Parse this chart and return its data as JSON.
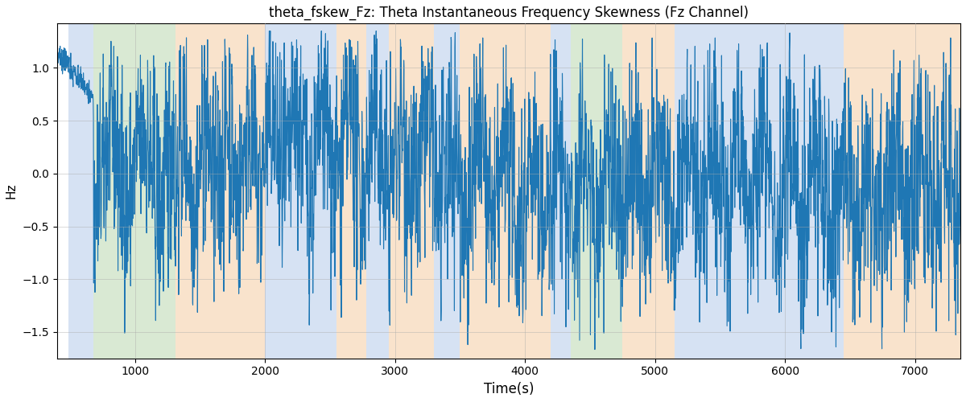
{
  "title": "theta_fskew_Fz: Theta Instantaneous Frequency Skewness (Fz Channel)",
  "xlabel": "Time(s)",
  "ylabel": "Hz",
  "xlim": [
    400,
    7350
  ],
  "ylim": [
    -1.75,
    1.42
  ],
  "line_color": "#1f77b4",
  "line_width": 0.8,
  "bg_regions": [
    {
      "xmin": 490,
      "xmax": 680,
      "color": "#aec6e8",
      "alpha": 0.5
    },
    {
      "xmin": 680,
      "xmax": 1310,
      "color": "#b5d4a8",
      "alpha": 0.5
    },
    {
      "xmin": 1310,
      "xmax": 2000,
      "color": "#f5c99a",
      "alpha": 0.5
    },
    {
      "xmin": 2000,
      "xmax": 2550,
      "color": "#aec6e8",
      "alpha": 0.5
    },
    {
      "xmin": 2550,
      "xmax": 2780,
      "color": "#f5c99a",
      "alpha": 0.5
    },
    {
      "xmin": 2780,
      "xmax": 2950,
      "color": "#aec6e8",
      "alpha": 0.5
    },
    {
      "xmin": 2950,
      "xmax": 3300,
      "color": "#f5c99a",
      "alpha": 0.5
    },
    {
      "xmin": 3300,
      "xmax": 3500,
      "color": "#aec6e8",
      "alpha": 0.5
    },
    {
      "xmin": 3500,
      "xmax": 4200,
      "color": "#f5c99a",
      "alpha": 0.5
    },
    {
      "xmin": 4200,
      "xmax": 4350,
      "color": "#aec6e8",
      "alpha": 0.5
    },
    {
      "xmin": 4350,
      "xmax": 4750,
      "color": "#b5d4a8",
      "alpha": 0.5
    },
    {
      "xmin": 4750,
      "xmax": 5150,
      "color": "#f5c99a",
      "alpha": 0.5
    },
    {
      "xmin": 5150,
      "xmax": 6450,
      "color": "#aec6e8",
      "alpha": 0.5
    },
    {
      "xmin": 6450,
      "xmax": 7350,
      "color": "#f5c99a",
      "alpha": 0.5
    }
  ],
  "seed": 42,
  "n_points": 3500,
  "t_start": 400,
  "t_end": 7350,
  "yticks": [
    -1.5,
    -1.0,
    -0.5,
    0.0,
    0.5,
    1.0
  ],
  "xticks": [
    1000,
    2000,
    3000,
    4000,
    5000,
    6000,
    7000
  ],
  "grid_color": "#aaaaaa",
  "grid_alpha": 0.5,
  "figsize": [
    12.0,
    5.0
  ],
  "dpi": 100
}
